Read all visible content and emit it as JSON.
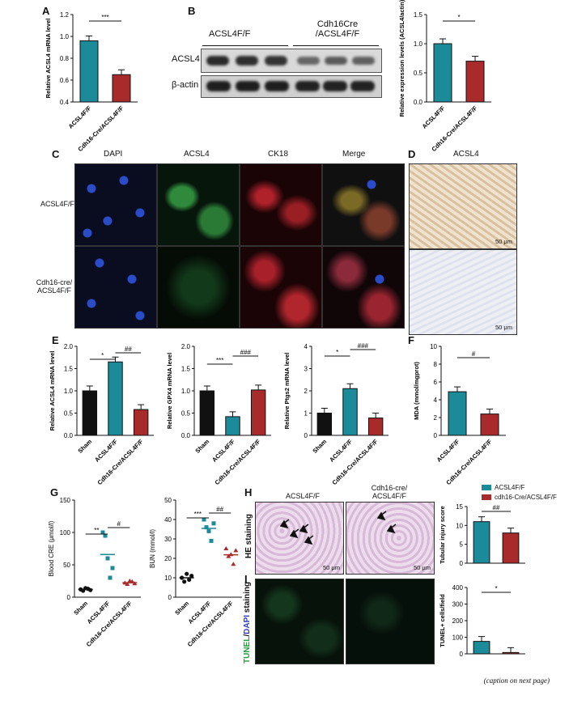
{
  "panels": {
    "A": {
      "letter": "A"
    },
    "B": {
      "letter": "B",
      "header_left": "ACSL4F/F",
      "header_right": "Cdh16Cre /ACSL4F/F",
      "row1": "ACSL4",
      "row2": "β-actin"
    },
    "C": {
      "letter": "C",
      "cols": [
        "DAPI",
        "ACSL4",
        "CK18",
        "Merge"
      ],
      "row1": "ACSL4F/F",
      "row2": "Cdh16-cre/ ACSL4F/F"
    },
    "D": {
      "letter": "D",
      "title": "ACSL4",
      "scale1": "50 μm",
      "scale2": "50 μm"
    },
    "E": {
      "letter": "E"
    },
    "F": {
      "letter": "F"
    },
    "G": {
      "letter": "G"
    },
    "H": {
      "letter": "H",
      "side": "HE staining",
      "col1": "ACSL4F/F",
      "col2": "Cdh16-cre/ ACSL4F/F",
      "scale1": "50 μm",
      "scale2": "50 μm"
    },
    "I": {
      "letter": "I",
      "side_green": "TUNEL",
      "side_blue": "DAPI",
      "side_rest": " staining"
    }
  },
  "legend": {
    "item1": "ACSL4F/F",
    "item2": "cdh16-Cre/ACSL4F/F",
    "color1": "#1b8a99",
    "color2": "#a82a2a"
  },
  "caption": "(caption on next page)",
  "chart_data": [
    {
      "id": "A",
      "type": "bar",
      "categories": [
        "ACSL4F/F",
        "Cdh16-Cre/ACSL4F/F"
      ],
      "values": [
        0.96,
        0.65
      ],
      "ylabel": "Relative ACSL4 mRNA level",
      "ylim": [
        0.4,
        1.2
      ],
      "yticks": [
        "0.4",
        "0.6",
        "0.8",
        "1.0",
        "1.2"
      ],
      "sig": "***"
    },
    {
      "id": "B",
      "type": "bar",
      "categories": [
        "ACSL4F/F",
        "Cdh16-Cre/ACSL4F/F"
      ],
      "values": [
        1.0,
        0.7
      ],
      "ylabel": "Relative expression levels (ACSL4/actin)",
      "ylim": [
        0,
        1.5
      ],
      "yticks": [
        "0.0",
        "0.5",
        "1.0",
        "1.5"
      ],
      "sig": "*"
    },
    {
      "id": "E1",
      "type": "bar",
      "categories": [
        "Sham",
        "ACSL4F/F",
        "Cdh16-Cre/ACSL4F/F"
      ],
      "values": [
        1.0,
        1.65,
        0.58
      ],
      "ylabel": "Relative ACSL4 mRNA level",
      "ylim": [
        0,
        2.0
      ],
      "yticks": [
        "0.0",
        "0.5",
        "1.0",
        "1.5",
        "2.0"
      ],
      "sig": [
        "*",
        "##"
      ]
    },
    {
      "id": "E2",
      "type": "bar",
      "categories": [
        "Sham",
        "ACSL4F/F",
        "Cdh16-Cre/ACSL4F/F"
      ],
      "values": [
        1.0,
        0.42,
        1.02
      ],
      "ylabel": "Relative GPX4 mRNA level",
      "ylim": [
        0,
        2.0
      ],
      "yticks": [
        "0.0",
        "0.5",
        "1.0",
        "1.5",
        "2.0"
      ],
      "sig": [
        "***",
        "###"
      ]
    },
    {
      "id": "E3",
      "type": "bar",
      "categories": [
        "Sham",
        "ACSL4F/F",
        "Cdh16-Cre/ACSL4F/F"
      ],
      "values": [
        1.0,
        2.1,
        0.78
      ],
      "ylabel": "Relative Ptgs2 mRNA level",
      "ylim": [
        0,
        4
      ],
      "yticks": [
        "0",
        "1",
        "2",
        "3",
        "4"
      ],
      "sig": [
        "*",
        "###"
      ]
    },
    {
      "id": "F",
      "type": "bar",
      "categories": [
        "ACSL4F/F",
        "Cdh16-Cre/ACSL4F/F"
      ],
      "values": [
        4.9,
        2.4
      ],
      "ylabel": "MDA (mmol/mgprot)",
      "ylim": [
        0,
        10
      ],
      "yticks": [
        "0",
        "2",
        "4",
        "6",
        "8",
        "10"
      ],
      "sig": "#"
    },
    {
      "id": "G1",
      "type": "scatter",
      "categories": [
        "Sham",
        "ACSL4F/F",
        "Cdh16-Cre/ACSL4F/F"
      ],
      "ylabel": "Blood CRE (μmol/l)",
      "ylim": [
        0,
        150
      ],
      "yticks": [
        "0",
        "50",
        "100",
        "150"
      ],
      "sig": [
        "**",
        "#"
      ]
    },
    {
      "id": "G2",
      "type": "scatter",
      "categories": [
        "Sham",
        "ACSL4F/F",
        "Cdh16-Cre/ACSL4F/F"
      ],
      "ylabel": "BUN (mmol/l)",
      "ylim": [
        0,
        50
      ],
      "yticks": [
        "0",
        "10",
        "20",
        "30",
        "40",
        "50"
      ],
      "sig": [
        "***",
        "##"
      ]
    },
    {
      "id": "H",
      "type": "bar",
      "categories": [
        "ACSL4F/F",
        "cdh16-Cre/ACSL4F/F"
      ],
      "values": [
        11.0,
        8.0
      ],
      "ylabel": "Tubular injury score",
      "ylim": [
        0,
        15
      ],
      "yticks": [
        "0",
        "5",
        "10",
        "15"
      ],
      "sig": "##"
    },
    {
      "id": "I",
      "type": "bar",
      "categories": [
        "ACSL4F/F",
        "cdh16-Cre/ACSL4F/F"
      ],
      "values": [
        75,
        8
      ],
      "ylabel": "TUNEL+ cells/field",
      "ylim": [
        0,
        400
      ],
      "yticks": [
        "0",
        "100",
        "200",
        "300",
        "400"
      ],
      "sig": "*"
    }
  ]
}
